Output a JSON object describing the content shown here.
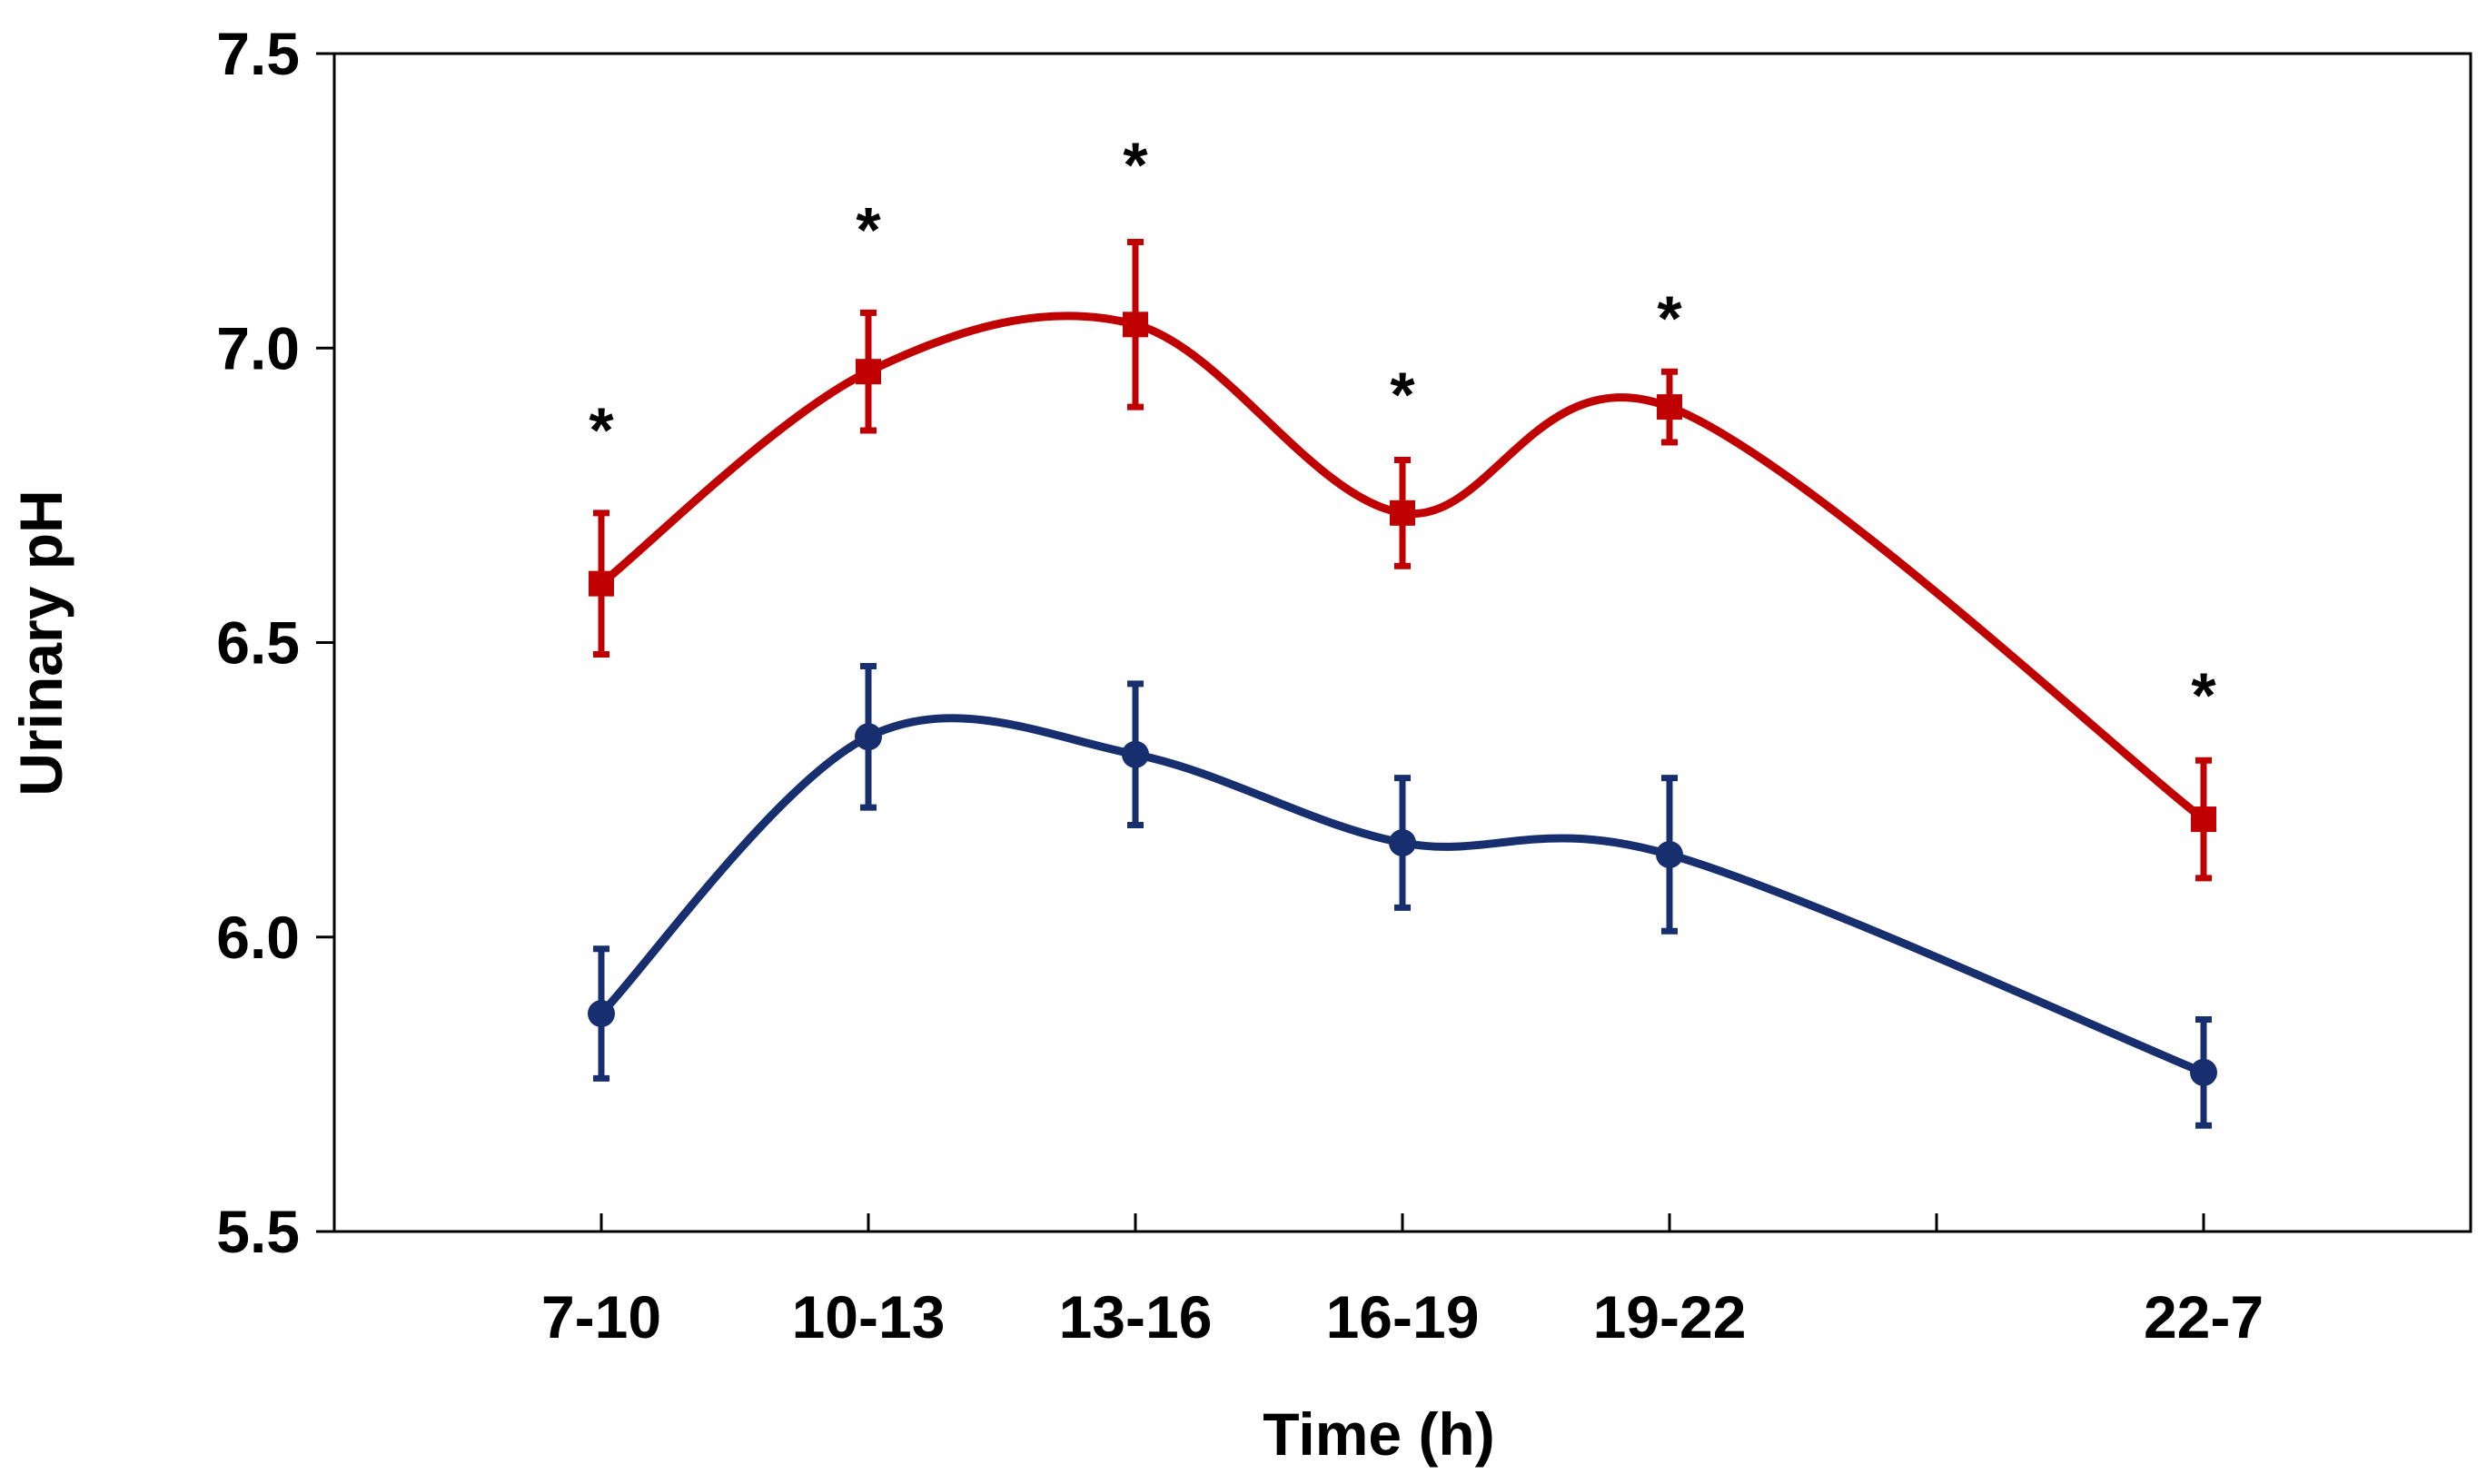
{
  "chart_data": {
    "type": "line",
    "title": "",
    "xlabel": "Time (h)",
    "ylabel": "Urinary pH",
    "categories": [
      "7-10",
      "10-13",
      "13-16",
      "16-19",
      "19-22",
      "22-7"
    ],
    "category_positions": [
      1,
      2,
      3,
      4,
      5,
      7
    ],
    "x_range": [
      0,
      8
    ],
    "ylim": [
      5.5,
      7.5
    ],
    "yticks": [
      5.5,
      6.0,
      6.5,
      7.0,
      7.5
    ],
    "ytick_labels": [
      "5.5",
      "6.0",
      "6.5",
      "7.0",
      "7.5"
    ],
    "grid": false,
    "smooth": true,
    "series": [
      {
        "name": "red series",
        "color": "#c00000",
        "marker": "square",
        "values": [
          6.6,
          6.96,
          7.04,
          6.72,
          6.9,
          6.2
        ],
        "errors": [
          0.12,
          0.1,
          0.14,
          0.09,
          0.06,
          0.1
        ]
      },
      {
        "name": "blue series",
        "color": "#172f6e",
        "marker": "circle",
        "values": [
          5.87,
          6.34,
          6.31,
          6.16,
          6.14,
          5.77
        ],
        "errors": [
          0.11,
          0.12,
          0.12,
          0.11,
          0.13,
          0.09
        ]
      }
    ],
    "annotations": [
      {
        "category": "7-10",
        "text": "*",
        "y": 6.87
      },
      {
        "category": "10-13",
        "text": "*",
        "y": 7.21
      },
      {
        "category": "13-16",
        "text": "*",
        "y": 7.32
      },
      {
        "category": "16-19",
        "text": "*",
        "y": 6.93
      },
      {
        "category": "19-22",
        "text": "*",
        "y": 7.06
      },
      {
        "category": "22-7",
        "text": "*",
        "y": 6.42
      }
    ]
  }
}
